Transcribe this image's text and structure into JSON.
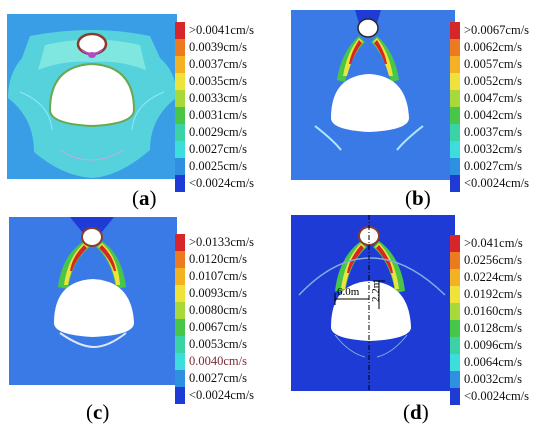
{
  "panels": [
    {
      "id": "a",
      "label_open": "(",
      "label_letter": "a",
      "label_close": ")",
      "legend": [
        {
          "text": ">0.0041cm/s",
          "color": "#d6262a"
        },
        {
          "text": "0.0039cm/s",
          "color": "#ec7a1e"
        },
        {
          "text": "0.0037cm/s",
          "color": "#f2b224"
        },
        {
          "text": "0.0035cm/s",
          "color": "#efe23a"
        },
        {
          "text": "0.0033cm/s",
          "color": "#a8d93a"
        },
        {
          "text": "0.0031cm/s",
          "color": "#47c64a"
        },
        {
          "text": "0.0029cm/s",
          "color": "#3bd2a6"
        },
        {
          "text": "0.0027cm/s",
          "color": "#3ddddd"
        },
        {
          "text": "0.0025cm/s",
          "color": "#2f8fe0"
        },
        {
          "text": "<0.0024cm/s",
          "color": "#1e3bd6"
        }
      ]
    },
    {
      "id": "b",
      "label_open": "(",
      "label_letter": "b",
      "label_close": ")",
      "legend": [
        {
          "text": ">0.0067cm/s",
          "color": "#d6262a"
        },
        {
          "text": "0.0062cm/s",
          "color": "#ec7a1e"
        },
        {
          "text": "0.0057cm/s",
          "color": "#f2b224"
        },
        {
          "text": "0.0052cm/s",
          "color": "#efe23a"
        },
        {
          "text": "0.0047cm/s",
          "color": "#a8d93a"
        },
        {
          "text": "0.0042cm/s",
          "color": "#47c64a"
        },
        {
          "text": "0.0037cm/s",
          "color": "#3bd2a6"
        },
        {
          "text": "0.0032cm/s",
          "color": "#3ddddd"
        },
        {
          "text": "0.0027cm/s",
          "color": "#2f8fe0"
        },
        {
          "text": "<0.0024cm/s",
          "color": "#1e3bd6"
        }
      ]
    },
    {
      "id": "c",
      "label_open": "(",
      "label_letter": "c",
      "label_close": ")",
      "legend": [
        {
          "text": ">0.0133cm/s",
          "color": "#d6262a"
        },
        {
          "text": "0.0120cm/s",
          "color": "#ec7a1e"
        },
        {
          "text": "0.0107cm/s",
          "color": "#f2b224"
        },
        {
          "text": "0.0093cm/s",
          "color": "#efe23a"
        },
        {
          "text": "0.0080cm/s",
          "color": "#a8d93a"
        },
        {
          "text": "0.0067cm/s",
          "color": "#47c64a"
        },
        {
          "text": "0.0053cm/s",
          "color": "#3bd2a6"
        },
        {
          "text": "0.0040cm/s",
          "color": "#3ddddd"
        },
        {
          "text": "0.0027cm/s",
          "color": "#2f8fe0"
        },
        {
          "text": "<0.0024cm/s",
          "color": "#1e3bd6"
        }
      ]
    },
    {
      "id": "d",
      "label_open": "(",
      "label_letter": "d",
      "label_close": ")",
      "legend": [
        {
          "text": ">0.041cm/s",
          "color": "#d6262a"
        },
        {
          "text": "0.0256cm/s",
          "color": "#ec7a1e"
        },
        {
          "text": "0.0224cm/s",
          "color": "#f2b224"
        },
        {
          "text": "0.0192cm/s",
          "color": "#efe23a"
        },
        {
          "text": "0.0160cm/s",
          "color": "#a8d93a"
        },
        {
          "text": "0.0128cm/s",
          "color": "#47c64a"
        },
        {
          "text": "0.0096cm/s",
          "color": "#3bd2a6"
        },
        {
          "text": "0.0064cm/s",
          "color": "#3ddddd"
        },
        {
          "text": "0.0032cm/s",
          "color": "#2f8fe0"
        },
        {
          "text": "<0.0024cm/s",
          "color": "#1e3bd6"
        }
      ],
      "dimensions": {
        "horizontal": "6.0m",
        "vertical": "2.2m"
      }
    }
  ]
}
